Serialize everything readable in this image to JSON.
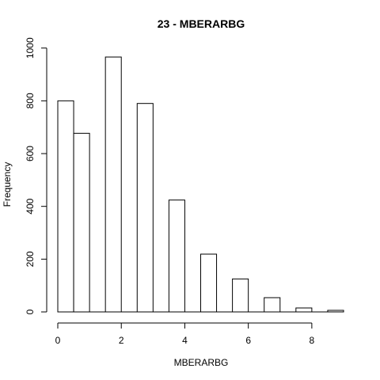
{
  "chart_data": {
    "type": "bar",
    "title": "23 - MBERARBG",
    "xlabel": "MBERARBG",
    "ylabel": "Frequency",
    "bin_edges": [
      0,
      0.5,
      1,
      1.5,
      2,
      2.5,
      3,
      3.5,
      4,
      4.5,
      5,
      5.5,
      6,
      6.5,
      7,
      7.5,
      8,
      8.5,
      9
    ],
    "values": [
      800,
      677,
      0,
      966,
      0,
      790,
      0,
      424,
      0,
      219,
      0,
      125,
      0,
      54,
      0,
      15,
      0,
      6
    ],
    "xlim": [
      -0.5,
      9.5
    ],
    "ylim": [
      0,
      1040
    ],
    "x_ticks": [
      0,
      2,
      4,
      6,
      8
    ],
    "y_ticks": [
      0,
      200,
      400,
      600,
      800,
      1000
    ],
    "x_tick_labels": [
      "0",
      "2",
      "4",
      "6",
      "8"
    ],
    "y_tick_labels": [
      "0",
      "200",
      "400",
      "600",
      "800",
      "1000"
    ],
    "bar_fill": "#ffffff",
    "bar_stroke": "#000000"
  }
}
